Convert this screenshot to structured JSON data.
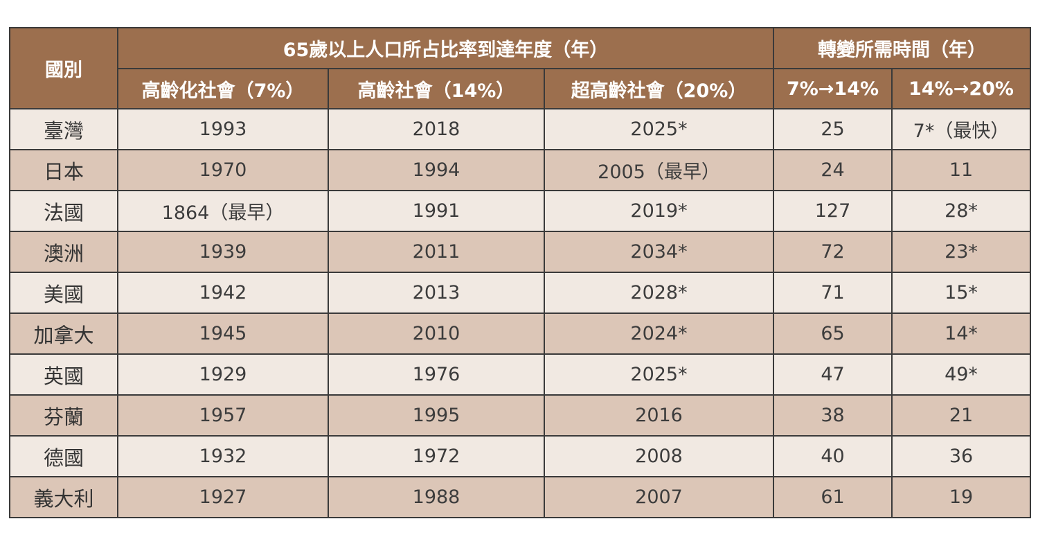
{
  "colors": {
    "header_bg": "#9c6f4e",
    "header_text": "#ffffff",
    "row_light": "#f1e9e2",
    "row_dark": "#dcc6b7",
    "border": "#3a3a3a"
  },
  "table": {
    "header": {
      "country": "國別",
      "group_year": "65歲以上人口所占比率到達年度（年）",
      "group_time": "轉變所需時間（年）",
      "aging": "高齡化社會（7%）",
      "aged": "高齡社會（14%）",
      "super_aged": "超高齡社會（20%）",
      "t1": "7%→14%",
      "t2": "14%→20%"
    },
    "rows": [
      {
        "country": "臺灣",
        "aging": "1993",
        "aged": "2018",
        "super_aged": "2025*",
        "t1": "25",
        "t2": "7*（最快）"
      },
      {
        "country": "日本",
        "aging": "1970",
        "aged": "1994",
        "super_aged": "2005（最早）",
        "t1": "24",
        "t2": "11"
      },
      {
        "country": "法國",
        "aging": "1864（最早）",
        "aged": "1991",
        "super_aged": "2019*",
        "t1": "127",
        "t2": "28*"
      },
      {
        "country": "澳洲",
        "aging": "1939",
        "aged": "2011",
        "super_aged": "2034*",
        "t1": "72",
        "t2": "23*"
      },
      {
        "country": "美國",
        "aging": "1942",
        "aged": "2013",
        "super_aged": "2028*",
        "t1": "71",
        "t2": "15*"
      },
      {
        "country": "加拿大",
        "aging": "1945",
        "aged": "2010",
        "super_aged": "2024*",
        "t1": "65",
        "t2": "14*"
      },
      {
        "country": "英國",
        "aging": "1929",
        "aged": "1976",
        "super_aged": "2025*",
        "t1": "47",
        "t2": "49*"
      },
      {
        "country": "芬蘭",
        "aging": "1957",
        "aged": "1995",
        "super_aged": "2016",
        "t1": "38",
        "t2": "21"
      },
      {
        "country": "德國",
        "aging": "1932",
        "aged": "1972",
        "super_aged": "2008",
        "t1": "40",
        "t2": "36"
      },
      {
        "country": "義大利",
        "aging": "1927",
        "aged": "1988",
        "super_aged": "2007",
        "t1": "61",
        "t2": "19"
      }
    ]
  }
}
